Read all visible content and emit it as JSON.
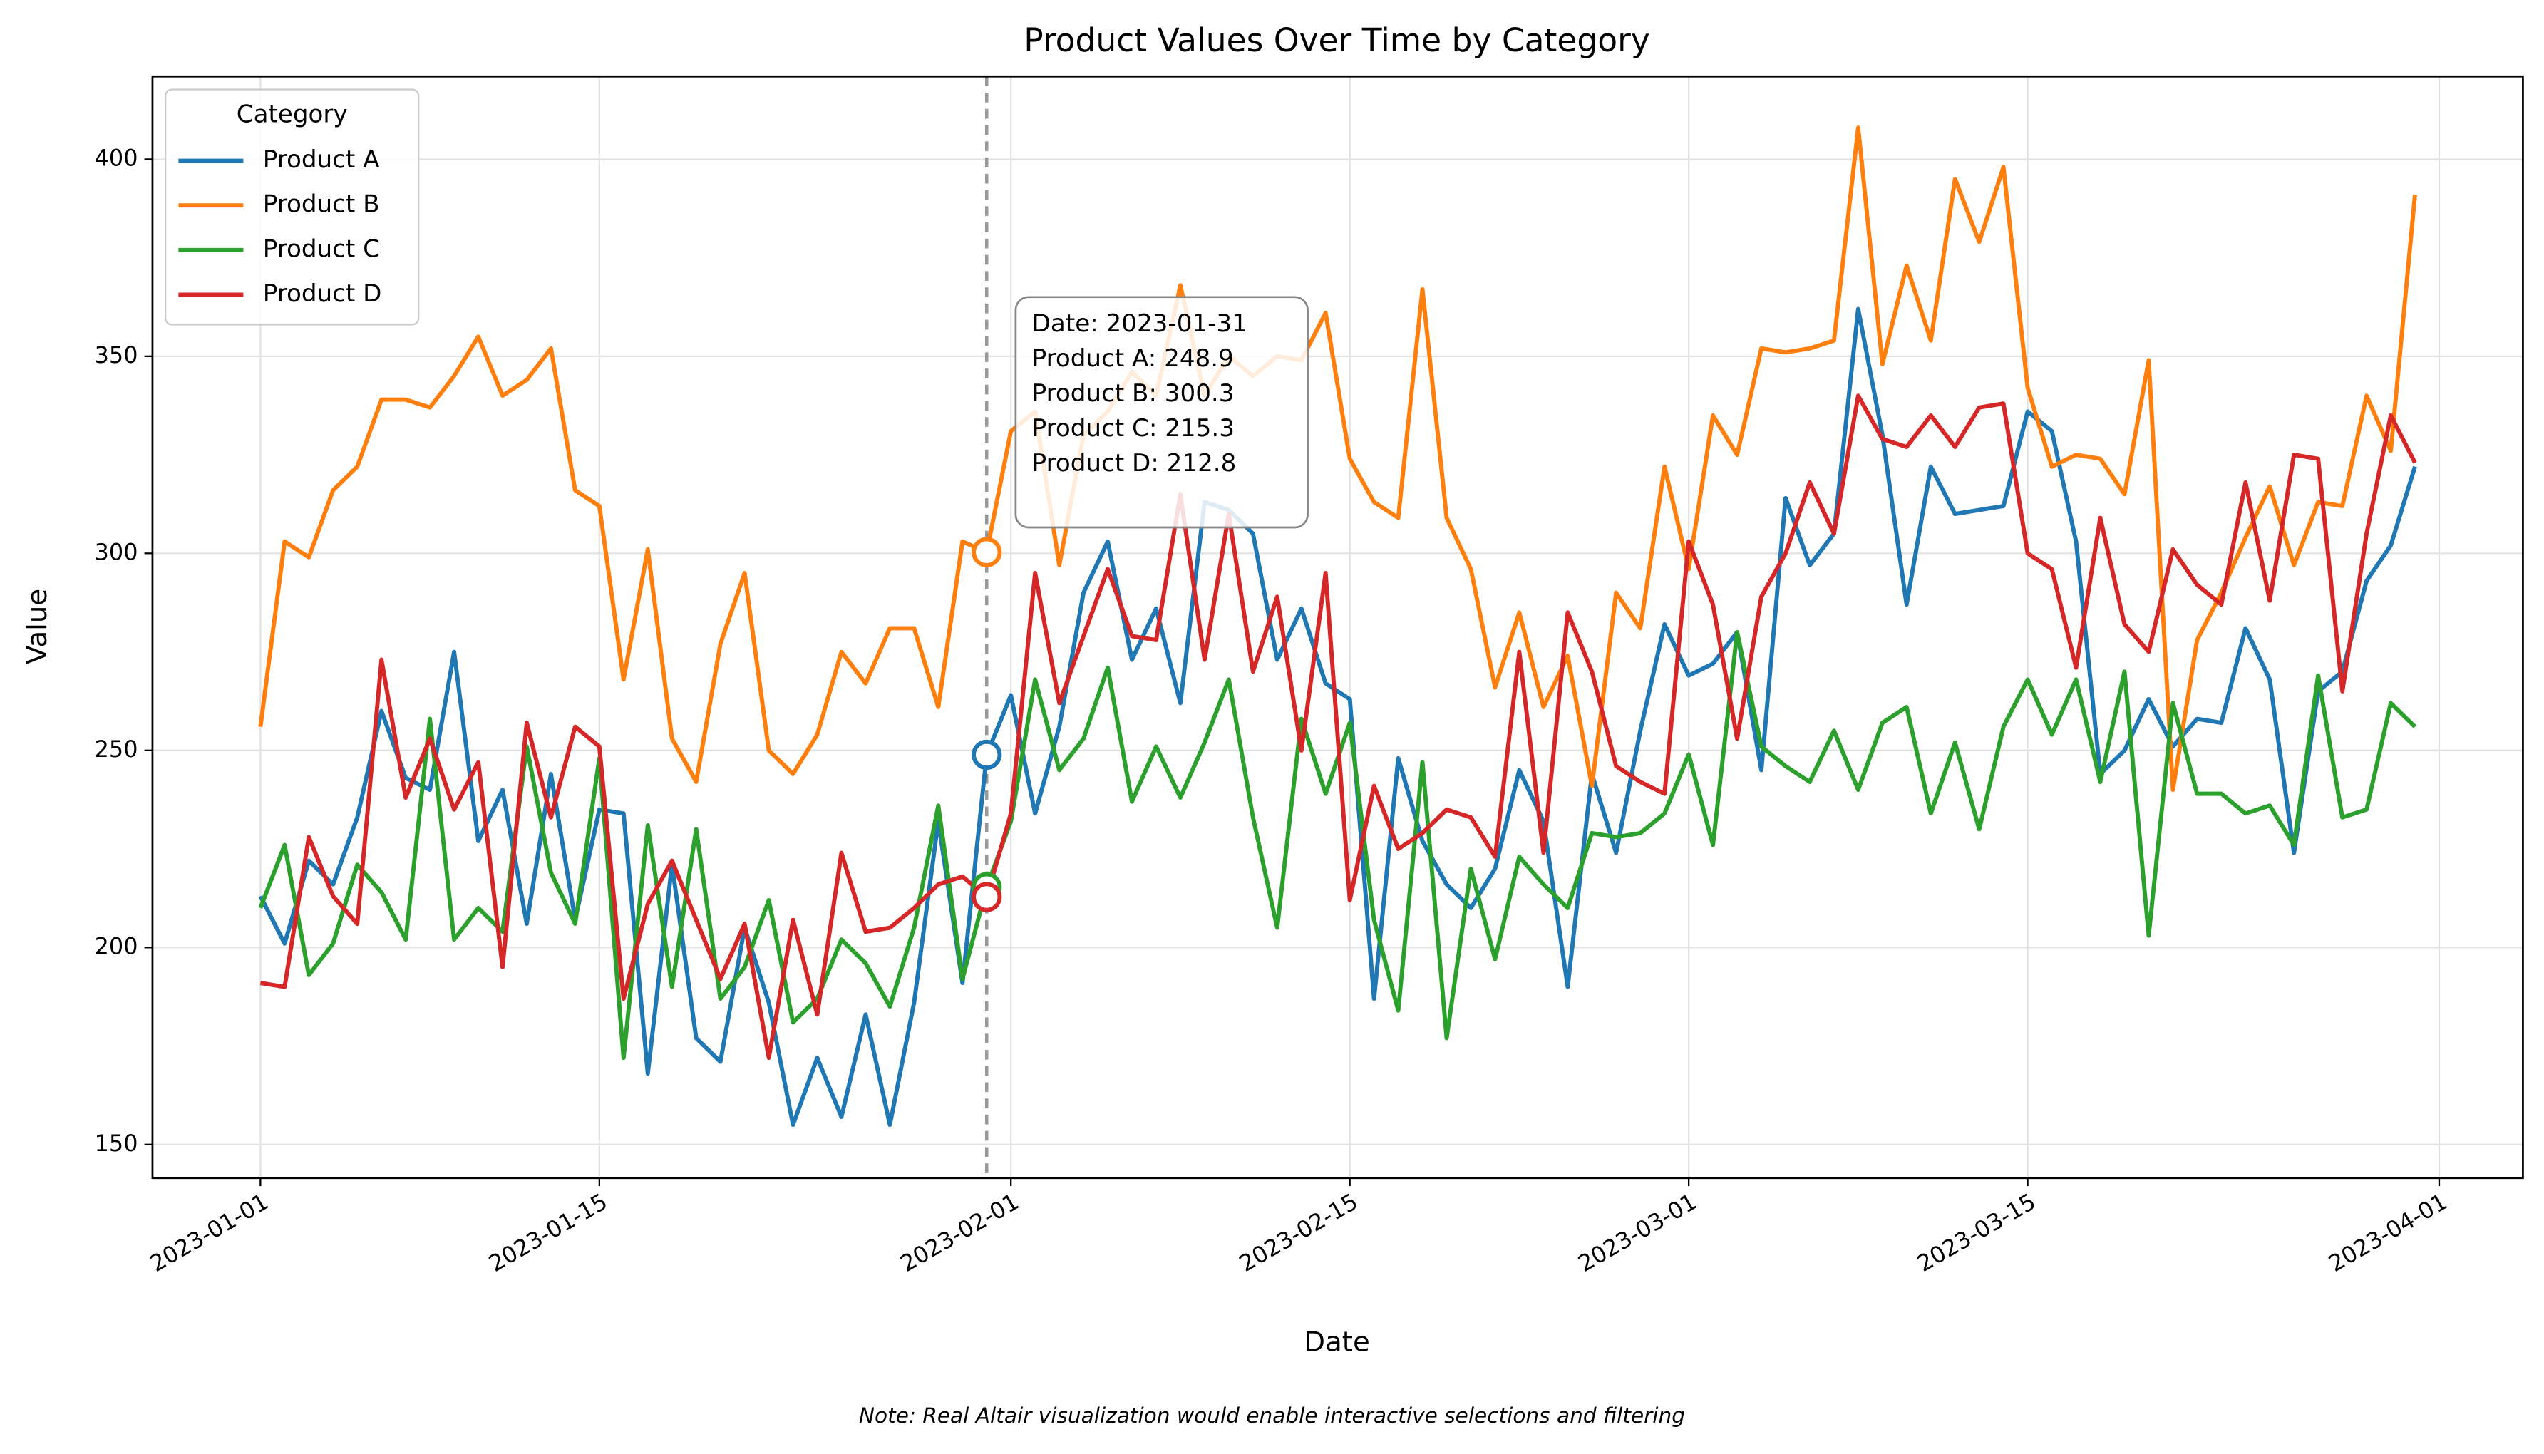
{
  "chart_data": {
    "type": "line",
    "title": "Product Values Over Time by Category",
    "xlabel": "Date",
    "ylabel": "Value",
    "note": "Note: Real Altair visualization would enable interactive selections and filtering",
    "legend": {
      "title": "Category",
      "position": "upper left"
    },
    "grid": true,
    "xlim": [
      "2022-12-27T13:00:00Z",
      "2023-04-04T11:00:00Z"
    ],
    "xticks": [
      "2023-01-01",
      "2023-01-15",
      "2023-02-01",
      "2023-02-15",
      "2023-03-01",
      "2023-03-15",
      "2023-04-01"
    ],
    "ylim": [
      141.5,
      421
    ],
    "yticks": [
      150,
      200,
      250,
      300,
      350,
      400
    ],
    "x": [
      "2023-01-01",
      "2023-01-02",
      "2023-01-03",
      "2023-01-04",
      "2023-01-05",
      "2023-01-06",
      "2023-01-07",
      "2023-01-08",
      "2023-01-09",
      "2023-01-10",
      "2023-01-11",
      "2023-01-12",
      "2023-01-13",
      "2023-01-14",
      "2023-01-15",
      "2023-01-16",
      "2023-01-17",
      "2023-01-18",
      "2023-01-19",
      "2023-01-20",
      "2023-01-21",
      "2023-01-22",
      "2023-01-23",
      "2023-01-24",
      "2023-01-25",
      "2023-01-26",
      "2023-01-27",
      "2023-01-28",
      "2023-01-29",
      "2023-01-30",
      "2023-01-31",
      "2023-02-01",
      "2023-02-02",
      "2023-02-03",
      "2023-02-04",
      "2023-02-05",
      "2023-02-06",
      "2023-02-07",
      "2023-02-08",
      "2023-02-09",
      "2023-02-10",
      "2023-02-11",
      "2023-02-12",
      "2023-02-13",
      "2023-02-14",
      "2023-02-15",
      "2023-02-16",
      "2023-02-17",
      "2023-02-18",
      "2023-02-19",
      "2023-02-20",
      "2023-02-21",
      "2023-02-22",
      "2023-02-23",
      "2023-02-24",
      "2023-02-25",
      "2023-02-26",
      "2023-02-27",
      "2023-02-28",
      "2023-03-01",
      "2023-03-02",
      "2023-03-03",
      "2023-03-04",
      "2023-03-05",
      "2023-03-06",
      "2023-03-07",
      "2023-03-08",
      "2023-03-09",
      "2023-03-10",
      "2023-03-11",
      "2023-03-12",
      "2023-03-13",
      "2023-03-14",
      "2023-03-15",
      "2023-03-16",
      "2023-03-17",
      "2023-03-18",
      "2023-03-19",
      "2023-03-20",
      "2023-03-21",
      "2023-03-22",
      "2023-03-23",
      "2023-03-24",
      "2023-03-25",
      "2023-03-26",
      "2023-03-27",
      "2023-03-28",
      "2023-03-29",
      "2023-03-30",
      "2023-03-31"
    ],
    "series": [
      {
        "name": "Product A",
        "color": "#1f77b4",
        "values": [
          213,
          201,
          222,
          216,
          233,
          260,
          243,
          240,
          275,
          227,
          240,
          206,
          244,
          207,
          235,
          234,
          168,
          221,
          177,
          171,
          205,
          186,
          155,
          172,
          157,
          183,
          155,
          186,
          232,
          191,
          248.9,
          264,
          234,
          256,
          290,
          303,
          273,
          286,
          262,
          313,
          311,
          305,
          273,
          286,
          267,
          263,
          187,
          248,
          227,
          216,
          210,
          220,
          245,
          232,
          190,
          244,
          224,
          255,
          282,
          269,
          272,
          280,
          245,
          314,
          297,
          305,
          362,
          330,
          287,
          322,
          310,
          311,
          312,
          336,
          331,
          303,
          244,
          250,
          263,
          251,
          258,
          257,
          281,
          268,
          224,
          265,
          270,
          293,
          302,
          322
        ]
      },
      {
        "name": "Product B",
        "color": "#ff7f0e",
        "values": [
          256,
          303,
          299,
          316,
          322,
          339,
          339,
          337,
          345,
          355,
          340,
          344,
          352,
          316,
          312,
          268,
          301,
          253,
          242,
          277,
          295,
          250,
          244,
          254,
          275,
          267,
          281,
          281,
          261,
          303,
          300.3,
          331,
          336,
          297,
          330,
          336,
          346,
          340,
          368,
          340,
          350,
          345,
          350,
          349,
          361,
          324,
          313,
          309,
          367,
          309,
          296,
          266,
          285,
          261,
          274,
          241,
          290,
          281,
          322,
          296,
          335,
          325,
          352,
          351,
          352,
          354,
          408,
          348,
          373,
          354,
          395,
          379,
          398,
          342,
          322,
          325,
          324,
          315,
          349,
          240,
          278,
          290,
          304,
          317,
          297,
          313,
          312,
          340,
          326,
          391
        ]
      },
      {
        "name": "Product C",
        "color": "#2ca02c",
        "values": [
          210,
          226,
          193,
          201,
          221,
          214,
          202,
          258,
          202,
          210,
          204,
          251,
          219,
          206,
          248,
          172,
          231,
          190,
          230,
          187,
          195,
          212,
          181,
          187,
          202,
          196,
          185,
          205,
          236,
          192,
          215.3,
          232,
          268,
          245,
          253,
          271,
          237,
          251,
          238,
          252,
          268,
          233,
          205,
          258,
          239,
          257,
          207,
          184,
          247,
          177,
          220,
          197,
          223,
          216,
          210,
          229,
          228,
          229,
          234,
          249,
          226,
          280,
          251,
          246,
          242,
          255,
          240,
          257,
          261,
          234,
          252,
          230,
          256,
          268,
          254,
          268,
          242,
          270,
          203,
          262,
          239,
          239,
          234,
          236,
          226,
          269,
          233,
          235,
          262,
          256
        ]
      },
      {
        "name": "Product D",
        "color": "#d62728",
        "values": [
          191,
          190,
          228,
          213,
          206,
          273,
          238,
          253,
          235,
          247,
          195,
          257,
          233,
          256,
          251,
          187,
          211,
          222,
          207,
          192,
          206,
          172,
          207,
          183,
          224,
          204,
          205,
          210,
          216,
          218,
          212.8,
          234,
          295,
          262,
          279,
          296,
          279,
          278,
          315,
          273,
          310,
          270,
          289,
          250,
          295,
          212,
          241,
          225,
          229,
          235,
          233,
          223,
          275,
          224,
          285,
          270,
          246,
          242,
          239,
          303,
          287,
          253,
          289,
          300,
          318,
          305,
          340,
          329,
          327,
          335,
          327,
          337,
          338,
          300,
          296,
          271,
          309,
          282,
          275,
          301,
          292,
          287,
          318,
          288,
          325,
          324,
          265,
          305,
          335,
          323
        ]
      }
    ],
    "tooltip": {
      "hover_x": "2023-01-31",
      "lines": [
        "Date: 2023-01-31",
        "Product A: 248.9",
        "Product B: 300.3",
        "Product C: 215.3",
        "Product D: 212.8"
      ]
    }
  }
}
